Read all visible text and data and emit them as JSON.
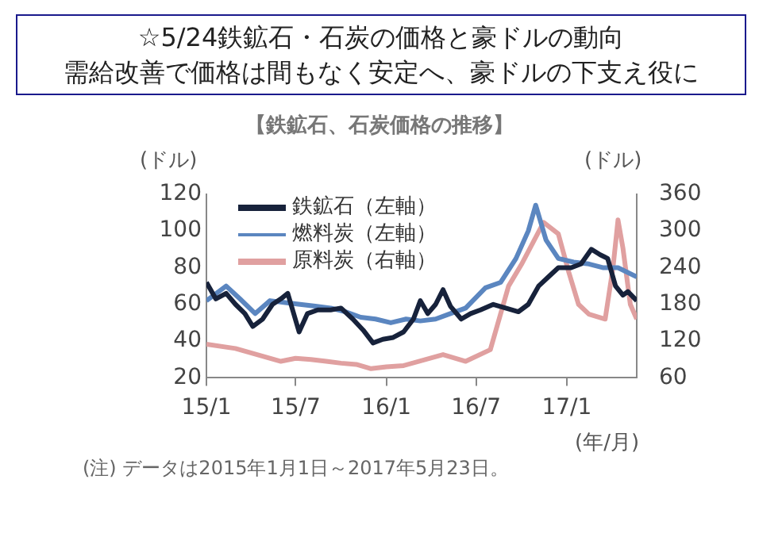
{
  "chart_data": {
    "type": "line",
    "title": "☆5/24鉄鉱石・石炭の価格と豪ドルの動向",
    "subtitle": "需給改善で価格は間もなく安定へ、豪ドルの下支え役に",
    "annotations": [
      "【鉄鉱石、石炭価格の推移】",
      "(注) データは2015年1月1日～2017年5月23日。"
    ],
    "xlabel": "(年/月)",
    "ylabel": "(ドル)",
    "y2label": "(ドル)",
    "series": [
      {
        "name": "鉄鉱石（左軸）",
        "color": "#17223b",
        "x": [
          "2015-01-01",
          "2015-01-20",
          "2015-02-10",
          "2015-03-01",
          "2015-03-20",
          "2015-04-05",
          "2015-04-25",
          "2015-05-15",
          "2015-06-01",
          "2015-06-15",
          "2015-07-08",
          "2015-07-25",
          "2015-08-15",
          "2015-09-10",
          "2015-10-01",
          "2015-10-25",
          "2015-11-15",
          "2015-12-05",
          "2015-12-25",
          "2016-01-15",
          "2016-02-05",
          "2016-02-25",
          "2016-03-10",
          "2016-03-25",
          "2016-04-10",
          "2016-04-25",
          "2016-05-10",
          "2016-06-01",
          "2016-06-20",
          "2016-07-10",
          "2016-08-05",
          "2016-08-30",
          "2016-09-25",
          "2016-10-15",
          "2016-11-05",
          "2016-11-25",
          "2016-12-15",
          "2017-01-10",
          "2017-01-30",
          "2017-02-20",
          "2017-03-10",
          "2017-03-25",
          "2017-04-10",
          "2017-04-25",
          "2017-05-05",
          "2017-05-23"
        ],
        "values": [
          72,
          63,
          66,
          60,
          55,
          48,
          52,
          60,
          63,
          66,
          45,
          55,
          57,
          57,
          58,
          52,
          46,
          39,
          41,
          42,
          45,
          52,
          62,
          55,
          60,
          68,
          59,
          52,
          55,
          57,
          60,
          58,
          56,
          60,
          70,
          75,
          80,
          80,
          82,
          90,
          87,
          85,
          70,
          65,
          67,
          62
        ]
      },
      {
        "name": "燃料炭（左軸）",
        "color": "#5b86c0",
        "x": [
          "2015-01-01",
          "2015-02-10",
          "2015-03-10",
          "2015-04-10",
          "2015-05-10",
          "2015-06-10",
          "2015-07-10",
          "2015-08-10",
          "2015-09-10",
          "2015-10-10",
          "2015-11-10",
          "2015-12-10",
          "2016-01-10",
          "2016-02-10",
          "2016-03-10",
          "2016-04-10",
          "2016-05-10",
          "2016-06-10",
          "2016-07-20",
          "2016-08-20",
          "2016-09-20",
          "2016-10-15",
          "2016-10-30",
          "2016-11-20",
          "2016-12-15",
          "2017-01-15",
          "2017-02-15",
          "2017-03-15",
          "2017-04-15",
          "2017-05-23"
        ],
        "values": [
          62,
          70,
          63,
          55,
          62,
          61,
          60,
          59,
          58,
          56,
          53,
          52,
          50,
          52,
          51,
          52,
          55,
          58,
          69,
          72,
          85,
          100,
          114,
          95,
          85,
          83,
          82,
          80,
          80,
          75
        ]
      },
      {
        "name": "原料炭（右軸）",
        "color": "#e0a0a0",
        "axis": "y2",
        "x": [
          "2015-01-01",
          "2015-03-01",
          "2015-06-01",
          "2015-07-01",
          "2015-08-01",
          "2015-09-01",
          "2015-10-01",
          "2015-11-01",
          "2015-12-01",
          "2016-01-01",
          "2016-02-05",
          "2016-04-25",
          "2016-06-10",
          "2016-07-30",
          "2016-09-05",
          "2016-10-01",
          "2016-11-15",
          "2016-12-15",
          "2017-01-05",
          "2017-01-25",
          "2017-02-15",
          "2017-03-20",
          "2017-04-05",
          "2017-04-15",
          "2017-04-25",
          "2017-05-10",
          "2017-05-23"
        ],
        "values": [
          115,
          108,
          87,
          92,
          90,
          87,
          84,
          82,
          75,
          78,
          80,
          98,
          87,
          106,
          210,
          245,
          314,
          295,
          233,
          180,
          164,
          156,
          241,
          318,
          272,
          180,
          156
        ]
      }
    ],
    "xlim": [
      "2015-01-01",
      "2017-05-23"
    ],
    "xticks": [
      {
        "value": "2015-01-01",
        "label": "15/1"
      },
      {
        "value": "2015-07-01",
        "label": "15/7"
      },
      {
        "value": "2016-01-01",
        "label": "16/1"
      },
      {
        "value": "2016-07-01",
        "label": "16/7"
      },
      {
        "value": "2017-01-01",
        "label": "17/1"
      }
    ],
    "ylim": [
      20,
      120
    ],
    "yticks": [
      20,
      40,
      60,
      80,
      100,
      120
    ],
    "y2lim": [
      60,
      360
    ],
    "y2ticks": [
      60,
      120,
      180,
      240,
      300,
      360
    ],
    "legend": "top left"
  }
}
